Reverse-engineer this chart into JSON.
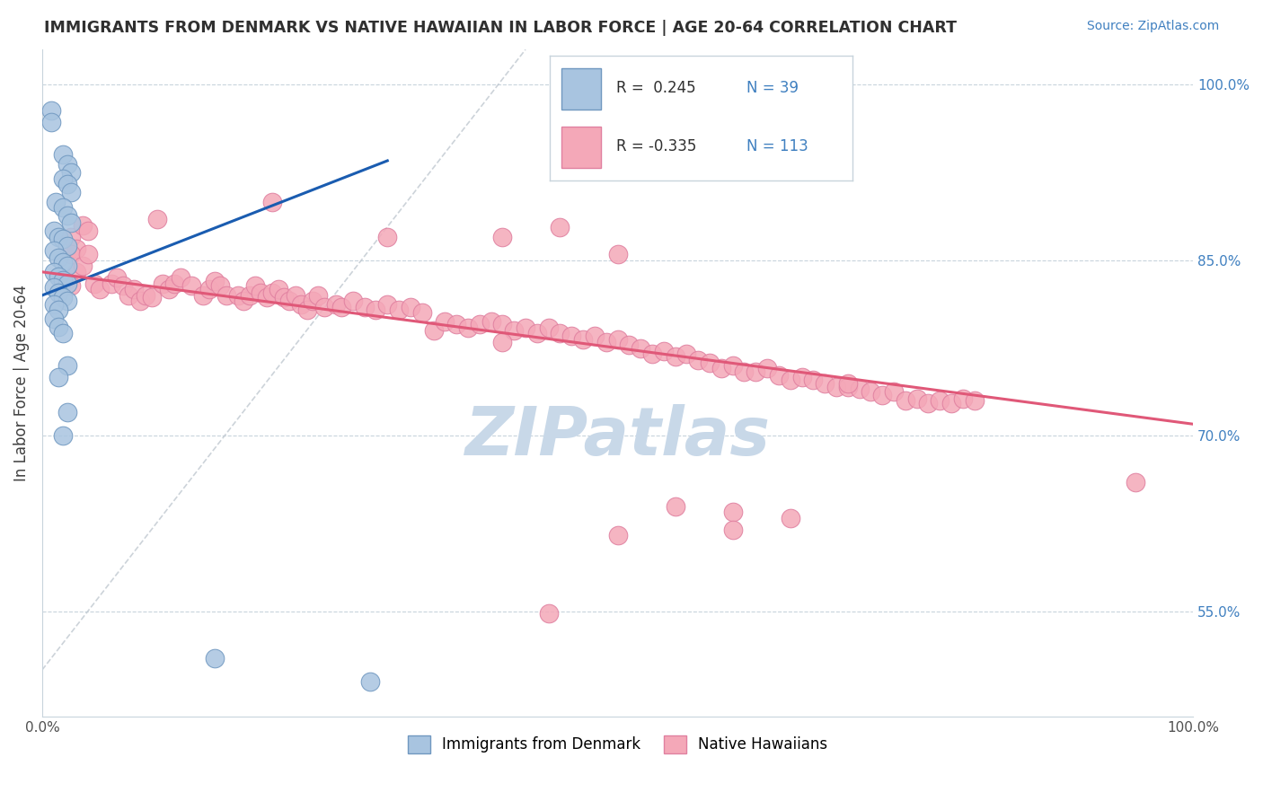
{
  "title": "IMMIGRANTS FROM DENMARK VS NATIVE HAWAIIAN IN LABOR FORCE | AGE 20-64 CORRELATION CHART",
  "source_text": "Source: ZipAtlas.com",
  "ylabel": "In Labor Force | Age 20-64",
  "xlim": [
    0.0,
    1.0
  ],
  "ylim": [
    0.46,
    1.03
  ],
  "right_yticks": [
    1.0,
    0.85,
    0.7,
    0.55
  ],
  "right_yticklabels": [
    "100.0%",
    "85.0%",
    "70.0%",
    "55.0%"
  ],
  "blue_color": "#a8c4e0",
  "pink_color": "#f4a8b8",
  "blue_edge_color": "#7098c0",
  "pink_edge_color": "#e080a0",
  "blue_line_color": "#1a5cb0",
  "pink_line_color": "#e05878",
  "grid_color": "#c8d4dc",
  "diag_color": "#c0c8d0",
  "watermark_color": "#c8d8e8",
  "title_color": "#303030",
  "source_color": "#4080c0",
  "axis_label_color": "#404040",
  "right_tick_color": "#4080c0",
  "legend_color": "#303030",
  "blue_trend_x0": 0.0,
  "blue_trend_y0": 0.82,
  "blue_trend_x1": 0.3,
  "blue_trend_y1": 0.935,
  "pink_trend_x0": 0.0,
  "pink_trend_y0": 0.84,
  "pink_trend_x1": 1.0,
  "pink_trend_y1": 0.71,
  "denmark_points": [
    [
      0.008,
      0.978
    ],
    [
      0.008,
      0.968
    ],
    [
      0.018,
      0.94
    ],
    [
      0.022,
      0.932
    ],
    [
      0.025,
      0.925
    ],
    [
      0.018,
      0.92
    ],
    [
      0.022,
      0.915
    ],
    [
      0.025,
      0.908
    ],
    [
      0.012,
      0.9
    ],
    [
      0.018,
      0.895
    ],
    [
      0.022,
      0.888
    ],
    [
      0.025,
      0.882
    ],
    [
      0.01,
      0.875
    ],
    [
      0.014,
      0.87
    ],
    [
      0.018,
      0.868
    ],
    [
      0.022,
      0.862
    ],
    [
      0.01,
      0.858
    ],
    [
      0.014,
      0.852
    ],
    [
      0.018,
      0.848
    ],
    [
      0.022,
      0.845
    ],
    [
      0.01,
      0.84
    ],
    [
      0.014,
      0.836
    ],
    [
      0.018,
      0.833
    ],
    [
      0.022,
      0.83
    ],
    [
      0.01,
      0.827
    ],
    [
      0.014,
      0.822
    ],
    [
      0.018,
      0.818
    ],
    [
      0.022,
      0.815
    ],
    [
      0.01,
      0.812
    ],
    [
      0.014,
      0.808
    ],
    [
      0.01,
      0.8
    ],
    [
      0.014,
      0.793
    ],
    [
      0.018,
      0.788
    ],
    [
      0.022,
      0.76
    ],
    [
      0.014,
      0.75
    ],
    [
      0.022,
      0.72
    ],
    [
      0.018,
      0.7
    ],
    [
      0.15,
      0.51
    ],
    [
      0.285,
      0.49
    ]
  ],
  "hawaii_points": [
    [
      0.025,
      0.87
    ],
    [
      0.03,
      0.86
    ],
    [
      0.025,
      0.855
    ],
    [
      0.035,
      0.88
    ],
    [
      0.04,
      0.875
    ],
    [
      0.03,
      0.84
    ],
    [
      0.035,
      0.845
    ],
    [
      0.04,
      0.855
    ],
    [
      0.02,
      0.832
    ],
    [
      0.025,
      0.828
    ],
    [
      0.045,
      0.83
    ],
    [
      0.05,
      0.825
    ],
    [
      0.06,
      0.83
    ],
    [
      0.065,
      0.835
    ],
    [
      0.07,
      0.828
    ],
    [
      0.075,
      0.82
    ],
    [
      0.08,
      0.825
    ],
    [
      0.085,
      0.815
    ],
    [
      0.09,
      0.82
    ],
    [
      0.095,
      0.818
    ],
    [
      0.105,
      0.83
    ],
    [
      0.11,
      0.825
    ],
    [
      0.115,
      0.83
    ],
    [
      0.12,
      0.835
    ],
    [
      0.13,
      0.828
    ],
    [
      0.14,
      0.82
    ],
    [
      0.145,
      0.825
    ],
    [
      0.15,
      0.832
    ],
    [
      0.155,
      0.828
    ],
    [
      0.16,
      0.82
    ],
    [
      0.17,
      0.82
    ],
    [
      0.175,
      0.815
    ],
    [
      0.18,
      0.82
    ],
    [
      0.185,
      0.828
    ],
    [
      0.19,
      0.822
    ],
    [
      0.195,
      0.818
    ],
    [
      0.2,
      0.822
    ],
    [
      0.205,
      0.825
    ],
    [
      0.21,
      0.818
    ],
    [
      0.215,
      0.815
    ],
    [
      0.22,
      0.82
    ],
    [
      0.225,
      0.812
    ],
    [
      0.23,
      0.808
    ],
    [
      0.235,
      0.815
    ],
    [
      0.24,
      0.82
    ],
    [
      0.245,
      0.81
    ],
    [
      0.255,
      0.812
    ],
    [
      0.26,
      0.81
    ],
    [
      0.27,
      0.815
    ],
    [
      0.28,
      0.81
    ],
    [
      0.29,
      0.808
    ],
    [
      0.3,
      0.812
    ],
    [
      0.31,
      0.808
    ],
    [
      0.32,
      0.81
    ],
    [
      0.33,
      0.805
    ],
    [
      0.1,
      0.885
    ],
    [
      0.2,
      0.9
    ],
    [
      0.3,
      0.87
    ],
    [
      0.4,
      0.87
    ],
    [
      0.5,
      0.855
    ],
    [
      0.45,
      0.878
    ],
    [
      0.34,
      0.79
    ],
    [
      0.35,
      0.798
    ],
    [
      0.36,
      0.795
    ],
    [
      0.37,
      0.792
    ],
    [
      0.38,
      0.795
    ],
    [
      0.39,
      0.798
    ],
    [
      0.4,
      0.795
    ],
    [
      0.41,
      0.79
    ],
    [
      0.42,
      0.792
    ],
    [
      0.43,
      0.788
    ],
    [
      0.44,
      0.792
    ],
    [
      0.45,
      0.788
    ],
    [
      0.46,
      0.785
    ],
    [
      0.47,
      0.782
    ],
    [
      0.48,
      0.785
    ],
    [
      0.49,
      0.78
    ],
    [
      0.5,
      0.782
    ],
    [
      0.51,
      0.778
    ],
    [
      0.52,
      0.775
    ],
    [
      0.53,
      0.77
    ],
    [
      0.54,
      0.772
    ],
    [
      0.55,
      0.768
    ],
    [
      0.56,
      0.77
    ],
    [
      0.57,
      0.765
    ],
    [
      0.58,
      0.762
    ],
    [
      0.59,
      0.758
    ],
    [
      0.6,
      0.76
    ],
    [
      0.61,
      0.755
    ],
    [
      0.62,
      0.755
    ],
    [
      0.63,
      0.758
    ],
    [
      0.64,
      0.752
    ],
    [
      0.65,
      0.748
    ],
    [
      0.66,
      0.75
    ],
    [
      0.67,
      0.748
    ],
    [
      0.68,
      0.745
    ],
    [
      0.69,
      0.742
    ],
    [
      0.7,
      0.742
    ],
    [
      0.71,
      0.74
    ],
    [
      0.72,
      0.738
    ],
    [
      0.73,
      0.735
    ],
    [
      0.74,
      0.738
    ],
    [
      0.75,
      0.73
    ],
    [
      0.76,
      0.732
    ],
    [
      0.77,
      0.728
    ],
    [
      0.78,
      0.73
    ],
    [
      0.79,
      0.728
    ],
    [
      0.8,
      0.732
    ],
    [
      0.81,
      0.73
    ],
    [
      0.55,
      0.64
    ],
    [
      0.6,
      0.635
    ],
    [
      0.65,
      0.63
    ],
    [
      0.7,
      0.745
    ],
    [
      0.95,
      0.66
    ],
    [
      0.44,
      0.548
    ],
    [
      0.5,
      0.615
    ],
    [
      0.6,
      0.62
    ],
    [
      0.4,
      0.78
    ]
  ]
}
